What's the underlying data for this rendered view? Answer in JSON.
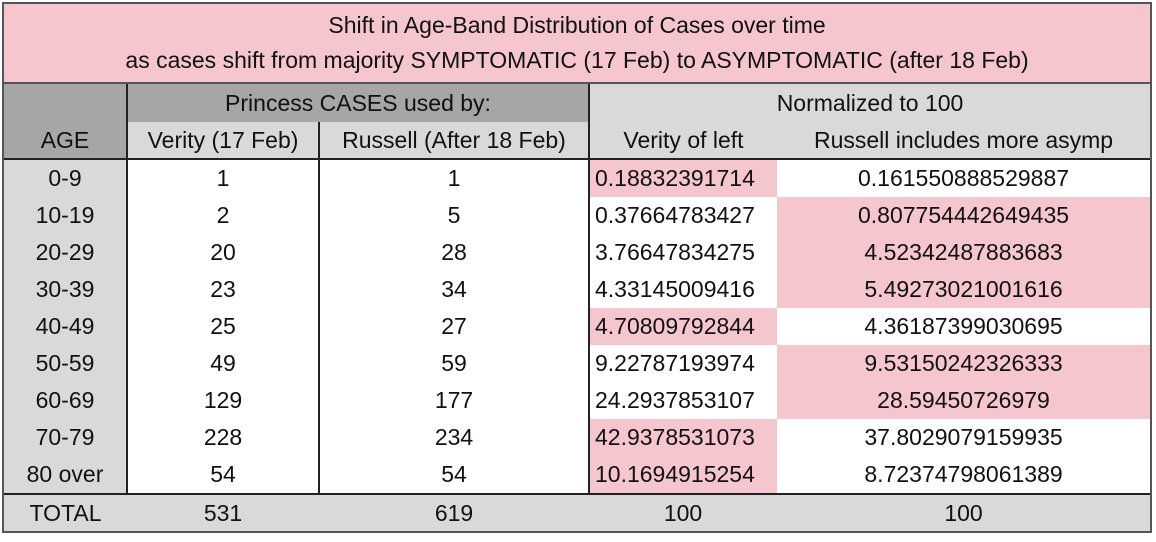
{
  "title": {
    "line1": "Shift in Age-Band Distribution of Cases over time",
    "line2": "as cases shift from majority SYMPTOMATIC (17 Feb) to ASYMPTOMATIC (after 18 Feb)"
  },
  "header": {
    "group_cases": "Princess CASES used by:",
    "group_normalized": "Normalized to 100",
    "age": "AGE",
    "col_verity": "Verity (17 Feb)",
    "col_russell": "Russell (After 18 Feb)",
    "col_verity_norm": "Verity of left",
    "col_russell_norm": "Russell includes more asymp"
  },
  "rows": [
    {
      "age": "0-9",
      "verity": "1",
      "russell": "1",
      "verity_norm": "0.18832391714",
      "russell_norm": "0.161550888529887",
      "highlight": "verity"
    },
    {
      "age": "10-19",
      "verity": "2",
      "russell": "5",
      "verity_norm": "0.37664783427",
      "russell_norm": "0.807754442649435",
      "highlight": "russell"
    },
    {
      "age": "20-29",
      "verity": "20",
      "russell": "28",
      "verity_norm": "3.76647834275",
      "russell_norm": "4.52342487883683",
      "highlight": "russell"
    },
    {
      "age": "30-39",
      "verity": "23",
      "russell": "34",
      "verity_norm": "4.33145009416",
      "russell_norm": "5.49273021001616",
      "highlight": "russell"
    },
    {
      "age": "40-49",
      "verity": "25",
      "russell": "27",
      "verity_norm": "4.70809792844",
      "russell_norm": "4.36187399030695",
      "highlight": "verity"
    },
    {
      "age": "50-59",
      "verity": "49",
      "russell": "59",
      "verity_norm": "9.22787193974",
      "russell_norm": "9.53150242326333",
      "highlight": "russell"
    },
    {
      "age": "60-69",
      "verity": "129",
      "russell": "177",
      "verity_norm": "24.2937853107",
      "russell_norm": "28.59450726979",
      "highlight": "russell"
    },
    {
      "age": "70-79",
      "verity": "228",
      "russell": "234",
      "verity_norm": "42.9378531073",
      "russell_norm": "37.8029079159935",
      "highlight": "verity"
    },
    {
      "age": "80 over",
      "verity": "54",
      "russell": "54",
      "verity_norm": "10.1694915254",
      "russell_norm": "8.72374798061389",
      "highlight": "verity"
    }
  ],
  "total": {
    "label": "TOTAL",
    "verity": "531",
    "russell": "619",
    "verity_norm": "100",
    "russell_norm": "100"
  },
  "colors": {
    "title_bg": "#f5c6ce",
    "highlight": "#f5c6ce",
    "header_dark": "#a6a6a6",
    "header_light": "#d9d9d9"
  }
}
